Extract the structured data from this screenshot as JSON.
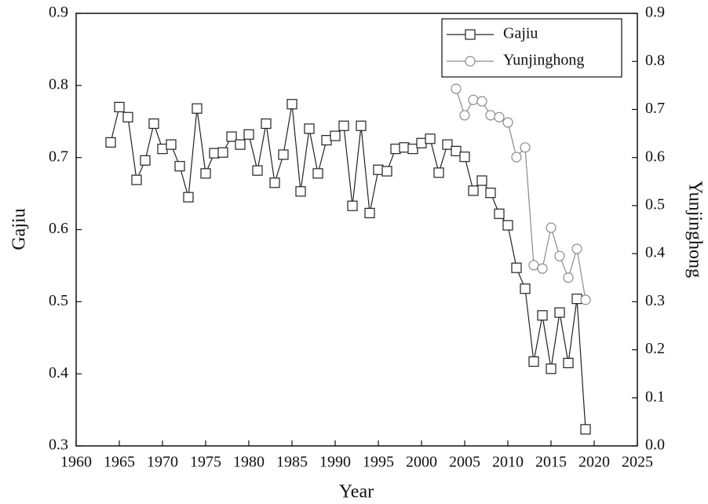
{
  "chart_data": {
    "type": "line",
    "xlabel": "Year",
    "ylabel": "Gajiu",
    "y2label": "Yunjinghong",
    "x": [
      1964,
      1965,
      1966,
      1967,
      1968,
      1969,
      1970,
      1971,
      1972,
      1973,
      1974,
      1975,
      1976,
      1977,
      1978,
      1979,
      1980,
      1981,
      1982,
      1983,
      1984,
      1985,
      1986,
      1987,
      1988,
      1989,
      1990,
      1991,
      1992,
      1993,
      1994,
      1995,
      1996,
      1997,
      1998,
      1999,
      2000,
      2001,
      2002,
      2003,
      2004,
      2005,
      2006,
      2007,
      2008,
      2009,
      2010,
      2011,
      2012,
      2013,
      2014,
      2015,
      2016,
      2017,
      2018,
      2019
    ],
    "series": [
      {
        "name": "Gajiu",
        "color": "#222222",
        "marker": "square",
        "axis": "y",
        "values": [
          0.721,
          0.77,
          0.756,
          0.669,
          0.696,
          0.747,
          0.712,
          0.718,
          0.688,
          0.645,
          0.768,
          0.678,
          0.706,
          0.707,
          0.729,
          0.718,
          0.732,
          0.682,
          0.747,
          0.665,
          0.704,
          0.774,
          0.653,
          0.74,
          0.678,
          0.724,
          0.73,
          0.744,
          0.633,
          0.744,
          0.623,
          0.683,
          0.681,
          0.712,
          0.714,
          0.712,
          0.72,
          0.726,
          0.679,
          0.718,
          0.709,
          0.701,
          0.654,
          0.668,
          0.651,
          0.622,
          0.606,
          0.547,
          0.518,
          0.417,
          0.481,
          0.407,
          0.485,
          0.415,
          0.504,
          0.323
        ]
      },
      {
        "name": "Yunjinghong",
        "color": "#8a8a8a",
        "marker": "circle",
        "axis": "y2",
        "values": [
          null,
          null,
          null,
          null,
          null,
          null,
          null,
          null,
          null,
          null,
          null,
          null,
          null,
          null,
          null,
          null,
          null,
          null,
          null,
          null,
          null,
          null,
          null,
          null,
          null,
          null,
          null,
          null,
          null,
          null,
          null,
          null,
          null,
          null,
          null,
          null,
          null,
          null,
          null,
          null,
          0.743,
          0.688,
          0.72,
          0.717,
          0.688,
          0.684,
          0.673,
          0.601,
          0.621,
          0.376,
          0.369,
          0.454,
          0.395,
          0.35,
          0.41,
          0.304
        ]
      }
    ],
    "xlim": [
      1960,
      2025
    ],
    "xticks": [
      1960,
      1965,
      1970,
      1975,
      1980,
      1985,
      1990,
      1995,
      2000,
      2005,
      2010,
      2015,
      2020,
      2025
    ],
    "ylim": [
      0.3,
      0.9
    ],
    "yticks": [
      0.3,
      0.4,
      0.5,
      0.6,
      0.7,
      0.8,
      0.9
    ],
    "y2lim": [
      0,
      0.9
    ],
    "y2ticks": [
      {
        "value": 0,
        "label": "0.0"
      },
      0.1,
      0.2,
      0.3,
      0.4,
      0.5,
      0.6,
      0.7,
      0.8,
      0.9
    ],
    "grid": false,
    "legend": "upper right"
  }
}
